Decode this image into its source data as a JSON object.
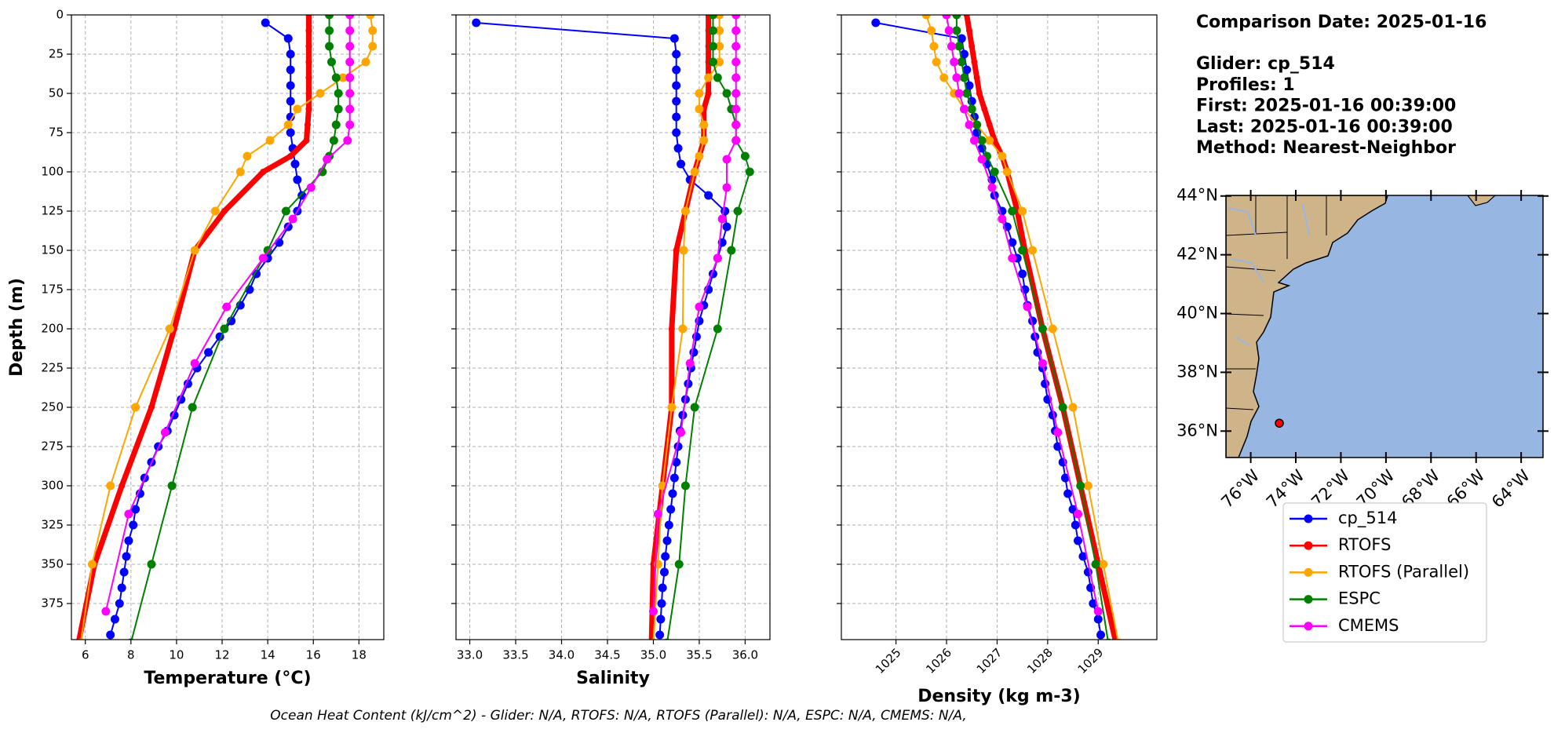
{
  "chart_data": [
    {
      "type": "line",
      "xlabel": "Temperature (°C)",
      "ylabel": "Depth (m)",
      "xlim": [
        5.39,
        19.09
      ],
      "xticks": [
        6,
        8,
        10,
        12,
        14,
        16,
        18
      ],
      "ylim": [
        0,
        398
      ],
      "y_inverted": true,
      "yticks": [
        0,
        25,
        50,
        75,
        100,
        125,
        150,
        175,
        200,
        225,
        250,
        275,
        300,
        325,
        350,
        375
      ],
      "ytick_labels": true,
      "grid": true,
      "series": [
        {
          "name": "cp_514",
          "color": "#0000ff",
          "linewidth": 2,
          "marker_radius": 5.5,
          "x": [
            13.9,
            14.9,
            15.0,
            15.0,
            15.0,
            15.0,
            15.0,
            15.0,
            15.1,
            15.2,
            15.3,
            15.5,
            15.3,
            14.9,
            14.5,
            14.0,
            13.5,
            13.2,
            12.8,
            12.4,
            11.9,
            11.4,
            10.9,
            10.5,
            10.2,
            9.9,
            9.6,
            9.2,
            8.9,
            8.6,
            8.4,
            8.2,
            8.1,
            7.9,
            7.8,
            7.7,
            7.6,
            7.5,
            7.3,
            7.1
          ],
          "y": [
            5,
            15,
            25,
            35,
            45,
            55,
            65,
            75,
            85,
            95,
            105,
            115,
            125,
            135,
            145,
            155,
            165,
            175,
            185,
            195,
            205,
            215,
            225,
            235,
            245,
            255,
            265,
            275,
            285,
            295,
            305,
            315,
            325,
            335,
            345,
            355,
            365,
            375,
            385,
            395
          ]
        },
        {
          "name": "RTOFS",
          "color": "#ff0000",
          "linewidth": 7,
          "marker_radius": 4,
          "x": [
            15.8,
            15.8,
            15.8,
            15.8,
            15.8,
            15.8,
            15.8,
            15.75,
            15.7,
            15.0,
            13.8,
            12.1,
            10.8,
            9.9,
            8.9,
            7.6,
            6.4,
            5.7
          ],
          "y": [
            0,
            10,
            20,
            30,
            40,
            50,
            60,
            70,
            80,
            90,
            100,
            125,
            150,
            200,
            250,
            300,
            350,
            400
          ]
        },
        {
          "name": "RTOFS (Parallel)",
          "color": "#ffa500",
          "linewidth": 2,
          "marker_radius": 5.5,
          "x": [
            18.5,
            18.6,
            18.6,
            18.3,
            17.3,
            16.3,
            15.3,
            14.9,
            14.1,
            13.1,
            12.8,
            11.7,
            10.8,
            9.7,
            8.2,
            7.1,
            6.3,
            5.8
          ],
          "y": [
            0,
            10,
            20,
            30,
            40,
            50,
            60,
            70,
            80,
            90,
            100,
            125,
            150,
            200,
            250,
            300,
            350,
            400
          ]
        },
        {
          "name": "ESPC",
          "color": "#008000",
          "linewidth": 2,
          "marker_radius": 5.5,
          "x": [
            16.7,
            16.7,
            16.7,
            16.8,
            17.0,
            17.1,
            17.1,
            17.0,
            16.9,
            16.7,
            16.4,
            14.8,
            14.0,
            12.1,
            10.7,
            9.8,
            8.9,
            8.0
          ],
          "y": [
            0,
            10,
            20,
            30,
            40,
            50,
            60,
            70,
            80,
            90,
            100,
            125,
            150,
            200,
            250,
            300,
            350,
            400
          ]
        },
        {
          "name": "CMEMS",
          "color": "#ff00ff",
          "linewidth": 2,
          "marker_radius": 5.5,
          "x": [
            17.6,
            17.6,
            17.6,
            17.6,
            17.6,
            17.6,
            17.6,
            17.6,
            17.5,
            16.6,
            15.9,
            15.1,
            13.8,
            12.2,
            10.8,
            9.5,
            7.9,
            6.9
          ],
          "y": [
            0,
            10,
            20,
            30,
            40,
            50,
            60,
            70,
            80,
            92,
            110,
            130,
            155,
            186,
            222,
            266,
            318,
            380
          ]
        }
      ]
    },
    {
      "type": "line",
      "xlabel": "Salinity",
      "xlim": [
        32.85,
        36.27
      ],
      "xticks": [
        {
          "value": 33,
          "label": "33.0"
        },
        33.5,
        {
          "value": 34,
          "label": "34.0"
        },
        34.5,
        {
          "value": 35,
          "label": "35.0"
        },
        35.5,
        {
          "value": 36,
          "label": "36.0"
        }
      ],
      "ylim": [
        0,
        398
      ],
      "y_inverted": true,
      "yticks": [
        0,
        25,
        50,
        75,
        100,
        125,
        150,
        175,
        200,
        225,
        250,
        275,
        300,
        325,
        350,
        375
      ],
      "ytick_labels": false,
      "grid": true,
      "series": [
        {
          "name": "cp_514",
          "color": "#0000ff",
          "linewidth": 2,
          "marker_radius": 5.5,
          "x": [
            33.07,
            35.23,
            35.25,
            35.25,
            35.25,
            35.25,
            35.25,
            35.25,
            35.27,
            35.3,
            35.4,
            35.6,
            35.78,
            35.8,
            35.75,
            35.7,
            35.65,
            35.6,
            35.55,
            35.5,
            35.47,
            35.44,
            35.41,
            35.38,
            35.35,
            35.32,
            35.29,
            35.27,
            35.25,
            35.23,
            35.21,
            35.19,
            35.17,
            35.15,
            35.13,
            35.12,
            35.1,
            35.09,
            35.08,
            35.07
          ],
          "y": [
            5,
            15,
            25,
            35,
            45,
            55,
            65,
            75,
            85,
            95,
            105,
            115,
            125,
            135,
            145,
            155,
            165,
            175,
            185,
            195,
            205,
            215,
            225,
            235,
            245,
            255,
            265,
            275,
            285,
            295,
            305,
            315,
            325,
            335,
            345,
            355,
            365,
            375,
            385,
            395
          ]
        },
        {
          "name": "RTOFS",
          "color": "#ff0000",
          "linewidth": 7,
          "marker_radius": 4,
          "x": [
            35.6,
            35.6,
            35.6,
            35.6,
            35.6,
            35.6,
            35.55,
            35.55,
            35.55,
            35.5,
            35.45,
            35.35,
            35.25,
            35.2,
            35.2,
            35.1,
            35.0,
            34.98
          ],
          "y": [
            0,
            10,
            20,
            30,
            40,
            50,
            60,
            70,
            80,
            90,
            100,
            125,
            150,
            200,
            250,
            300,
            350,
            400
          ]
        },
        {
          "name": "RTOFS (Parallel)",
          "color": "#ffa500",
          "linewidth": 2,
          "marker_radius": 5.5,
          "x": [
            35.72,
            35.72,
            35.72,
            35.72,
            35.6,
            35.5,
            35.5,
            35.55,
            35.55,
            35.5,
            35.45,
            35.35,
            35.33,
            35.32,
            35.2,
            35.1,
            35.05,
            35.0
          ],
          "y": [
            0,
            10,
            20,
            30,
            40,
            50,
            60,
            70,
            80,
            90,
            100,
            125,
            150,
            200,
            250,
            300,
            350,
            400
          ]
        },
        {
          "name": "ESPC",
          "color": "#008000",
          "linewidth": 2,
          "marker_radius": 5.5,
          "x": [
            35.65,
            35.65,
            35.65,
            35.65,
            35.7,
            35.8,
            35.85,
            35.9,
            35.9,
            36.0,
            36.05,
            35.92,
            35.85,
            35.7,
            35.45,
            35.35,
            35.28,
            35.15
          ],
          "y": [
            0,
            10,
            20,
            30,
            40,
            50,
            60,
            70,
            80,
            90,
            100,
            125,
            150,
            200,
            250,
            300,
            350,
            400
          ]
        },
        {
          "name": "CMEMS",
          "color": "#ff00ff",
          "linewidth": 2,
          "marker_radius": 5.5,
          "x": [
            35.9,
            35.9,
            35.9,
            35.9,
            35.9,
            35.9,
            35.9,
            35.9,
            35.9,
            35.8,
            35.8,
            35.75,
            35.7,
            35.5,
            35.4,
            35.3,
            35.05,
            35.0
          ],
          "y": [
            0,
            10,
            20,
            30,
            40,
            50,
            60,
            70,
            80,
            92,
            110,
            130,
            155,
            186,
            222,
            266,
            318,
            380
          ]
        }
      ]
    },
    {
      "type": "line",
      "xlabel": "Density (kg m-3)",
      "xlim": [
        1023.92,
        1030.16
      ],
      "xticks": [
        1025,
        1026,
        1027,
        1028,
        1029
      ],
      "xtick_rotation": 45,
      "ylim": [
        0,
        398
      ],
      "y_inverted": true,
      "yticks": [
        0,
        25,
        50,
        75,
        100,
        125,
        150,
        175,
        200,
        225,
        250,
        275,
        300,
        325,
        350,
        375
      ],
      "ytick_labels": false,
      "grid": true,
      "series": [
        {
          "name": "cp_514",
          "color": "#0000ff",
          "linewidth": 2,
          "marker_radius": 5.5,
          "x": [
            1024.6,
            1026.3,
            1026.35,
            1026.4,
            1026.45,
            1026.5,
            1026.55,
            1026.6,
            1026.7,
            1026.8,
            1026.9,
            1026.95,
            1027.1,
            1027.2,
            1027.3,
            1027.4,
            1027.5,
            1027.55,
            1027.6,
            1027.7,
            1027.75,
            1027.8,
            1027.9,
            1027.95,
            1028.0,
            1028.1,
            1028.15,
            1028.2,
            1028.3,
            1028.35,
            1028.4,
            1028.5,
            1028.55,
            1028.6,
            1028.7,
            1028.8,
            1028.85,
            1028.9,
            1029.0,
            1029.05
          ],
          "y": [
            5,
            15,
            25,
            35,
            45,
            55,
            65,
            75,
            85,
            95,
            105,
            115,
            125,
            135,
            145,
            155,
            165,
            175,
            185,
            195,
            205,
            215,
            225,
            235,
            245,
            255,
            265,
            275,
            285,
            295,
            305,
            315,
            325,
            335,
            345,
            355,
            365,
            375,
            385,
            395
          ]
        },
        {
          "name": "RTOFS",
          "color": "#ff0000",
          "linewidth": 7,
          "marker_radius": 4,
          "x": [
            1026.4,
            1026.45,
            1026.5,
            1026.55,
            1026.6,
            1026.65,
            1026.75,
            1026.85,
            1026.95,
            1027.1,
            1027.2,
            1027.4,
            1027.55,
            1027.9,
            1028.3,
            1028.65,
            1029.0,
            1029.35
          ],
          "y": [
            0,
            10,
            20,
            30,
            40,
            50,
            60,
            70,
            80,
            90,
            100,
            125,
            150,
            200,
            250,
            300,
            350,
            400
          ]
        },
        {
          "name": "RTOFS (Parallel)",
          "color": "#ffa500",
          "linewidth": 2,
          "marker_radius": 5.5,
          "x": [
            1025.6,
            1025.7,
            1025.75,
            1025.8,
            1025.95,
            1026.15,
            1026.35,
            1026.6,
            1026.85,
            1027.1,
            1027.2,
            1027.5,
            1027.7,
            1028.1,
            1028.5,
            1028.8,
            1029.1,
            1029.4
          ],
          "y": [
            0,
            10,
            20,
            30,
            40,
            50,
            60,
            70,
            80,
            90,
            100,
            125,
            150,
            200,
            250,
            300,
            350,
            400
          ]
        },
        {
          "name": "ESPC",
          "color": "#008000",
          "linewidth": 2,
          "marker_radius": 5.5,
          "x": [
            1026.2,
            1026.2,
            1026.25,
            1026.3,
            1026.35,
            1026.4,
            1026.5,
            1026.6,
            1026.7,
            1026.8,
            1026.95,
            1027.3,
            1027.5,
            1027.9,
            1028.3,
            1028.65,
            1028.95,
            1029.2
          ],
          "y": [
            0,
            10,
            20,
            30,
            40,
            50,
            60,
            70,
            80,
            90,
            100,
            125,
            150,
            200,
            250,
            300,
            350,
            400
          ]
        },
        {
          "name": "CMEMS",
          "color": "#ff00ff",
          "linewidth": 2,
          "marker_radius": 5.5,
          "x": [
            1026.0,
            1026.05,
            1026.1,
            1026.15,
            1026.2,
            1026.25,
            1026.35,
            1026.45,
            1026.55,
            1026.7,
            1026.9,
            1027.1,
            1027.3,
            1027.6,
            1027.9,
            1028.2,
            1028.6,
            1029.0
          ],
          "y": [
            0,
            10,
            20,
            30,
            40,
            50,
            60,
            70,
            80,
            92,
            110,
            130,
            155,
            186,
            222,
            266,
            318,
            380
          ]
        }
      ]
    },
    {
      "type": "map",
      "xlim": [
        -77.1,
        -63.03
      ],
      "ylim": [
        35.1,
        44.02
      ],
      "xtick_rotation": 45,
      "xticks": [
        {
          "value": -76,
          "label": "76°W"
        },
        {
          "value": -74,
          "label": "74°W"
        },
        {
          "value": -72,
          "label": "72°W"
        },
        {
          "value": -70,
          "label": "70°W"
        },
        {
          "value": -68,
          "label": "68°W"
        },
        {
          "value": -66,
          "label": "66°W"
        },
        {
          "value": -64,
          "label": "64°W"
        }
      ],
      "yticks": [
        {
          "value": 36,
          "label": "36°N"
        },
        {
          "value": 38,
          "label": "38°N"
        },
        {
          "value": 40,
          "label": "40°N"
        },
        {
          "value": 42,
          "label": "42°N"
        },
        {
          "value": 44,
          "label": "44°N"
        }
      ],
      "ocean_color": "#97b6e1",
      "land_color": "#cfb48a",
      "points": {
        "x": [
          -74.73
        ],
        "y": [
          36.27
        ],
        "color": "#ff0000"
      }
    }
  ],
  "info": {
    "comparison": "Comparison Date: 2025-01-16",
    "lines": [
      "Glider: cp_514",
      "Profiles: 1",
      "First: 2025-01-16 00:39:00",
      "Last: 2025-01-16 00:39:00",
      "Method: Nearest-Neighbor"
    ]
  },
  "legend": {
    "corner": "below-map"
  },
  "footer": "Ocean Heat Content (kJ/cm^2) - Glider: N/A,  RTOFS: N/A,  RTOFS (Parallel): N/A,  ESPC: N/A,  CMEMS: N/A,"
}
